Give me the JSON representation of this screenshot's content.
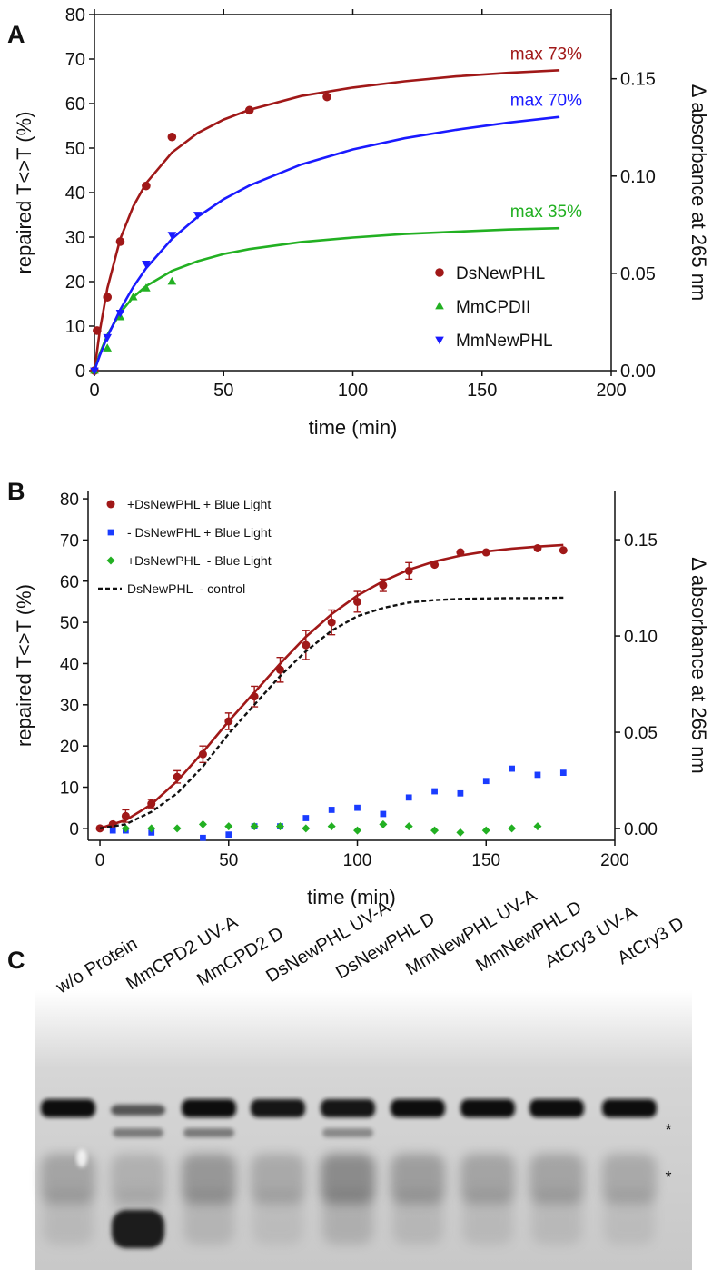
{
  "chart_data": [
    {
      "type": "scatter",
      "panel_label": "A",
      "xlabel": "time (min)",
      "ylabel": "repaired T<>T (%)",
      "y2label": "Δ absorbance at 265 nm",
      "xlim": [
        0,
        200
      ],
      "xticks": [
        0,
        50,
        100,
        150,
        200
      ],
      "ylim": [
        0,
        80
      ],
      "yticks": [
        0,
        10,
        20,
        30,
        40,
        50,
        60,
        70,
        80
      ],
      "y2lim": [
        0,
        0.183
      ],
      "y2ticks": [
        {
          "value": 0,
          "label": "0.00"
        },
        {
          "value": 0.05,
          "label": "0.05"
        },
        {
          "value": 0.1,
          "label": "0.10"
        },
        {
          "value": 0.15,
          "label": "0.15"
        }
      ],
      "legend": "lower right",
      "series": [
        {
          "name": "DsNewPHL",
          "color": "#a01818",
          "marker": "circle",
          "annotation": "max 73%",
          "x": [
            0,
            1,
            5,
            10,
            20,
            30,
            60,
            90
          ],
          "values": [
            0,
            9,
            16.5,
            29,
            41.5,
            52.5,
            58.5,
            61.5
          ],
          "fit_x": [
            0,
            2,
            5,
            10,
            15,
            20,
            30,
            40,
            50,
            60,
            80,
            100,
            120,
            140,
            160,
            180
          ],
          "fit_values": [
            0,
            8.7,
            18.5,
            29.6,
            36.9,
            42.1,
            49,
            53.4,
            56.4,
            58.6,
            61.7,
            63.6,
            65,
            66.1,
            66.9,
            67.5
          ]
        },
        {
          "name": "MmCPDII",
          "color": "#22b022",
          "marker": "triangle-up",
          "annotation": "max 35%",
          "x": [
            0,
            5,
            10,
            15,
            20,
            30
          ],
          "values": [
            0,
            5,
            12,
            16.5,
            18.5,
            20
          ],
          "fit_x": [
            0,
            2,
            5,
            10,
            15,
            20,
            30,
            40,
            50,
            60,
            80,
            100,
            120,
            140,
            160,
            180
          ],
          "fit_values": [
            0,
            3.7,
            8,
            13,
            16.5,
            19,
            22.4,
            24.6,
            26.2,
            27.3,
            28.9,
            29.9,
            30.7,
            31.2,
            31.7,
            32
          ]
        },
        {
          "name": "MmNewPHL",
          "color": "#1a1aff",
          "marker": "triangle-down",
          "annotation": "max 70%",
          "x": [
            0,
            5,
            10,
            20,
            30,
            40
          ],
          "values": [
            0,
            7.5,
            13,
            24,
            30.5,
            35
          ],
          "fit_x": [
            0,
            2,
            5,
            10,
            15,
            20,
            30,
            40,
            50,
            60,
            80,
            100,
            120,
            140,
            160,
            180
          ],
          "fit_values": [
            0,
            3.3,
            7.6,
            13.7,
            18.8,
            23,
            29.6,
            34.6,
            38.5,
            41.6,
            46.3,
            49.7,
            52.2,
            54.1,
            55.7,
            57
          ]
        }
      ]
    },
    {
      "type": "scatter",
      "panel_label": "B",
      "xlabel": "time (min)",
      "ylabel": "repaired T<>T (%)",
      "y2label": "Δ absorbance at 265 nm",
      "xlim": [
        -4.6,
        200
      ],
      "xticks": [
        0,
        50,
        100,
        150,
        200
      ],
      "ylim": [
        -2.9,
        82
      ],
      "yticks": [
        0,
        10,
        20,
        30,
        40,
        50,
        60,
        70,
        80
      ],
      "y2lim": [
        -0.0061,
        0.1755
      ],
      "y2ticks": [
        {
          "value": 0,
          "label": "0.00"
        },
        {
          "value": 0.05,
          "label": "0.05"
        },
        {
          "value": 0.1,
          "label": "0.10"
        },
        {
          "value": 0.15,
          "label": "0.15"
        }
      ],
      "legend": "upper left",
      "series": [
        {
          "name": "+DsNewPHL + Blue Light",
          "color": "#a01818",
          "marker": "circle",
          "x": [
            0,
            5,
            10,
            20,
            30,
            40,
            50,
            60,
            70,
            80,
            90,
            100,
            110,
            120,
            130,
            140,
            150,
            170,
            180
          ],
          "values": [
            0,
            1,
            3,
            6,
            12.5,
            18,
            26,
            32,
            38.5,
            44.5,
            50,
            55,
            59,
            62.5,
            64,
            67,
            67,
            68,
            67.5
          ],
          "errors": [
            null,
            null,
            1.5,
            1,
            1.5,
            2,
            2,
            2.5,
            3,
            3.5,
            3,
            2.5,
            1.5,
            2,
            null,
            null,
            null,
            null,
            null
          ],
          "fit_x": [
            0,
            10,
            20,
            30,
            40,
            50,
            60,
            70,
            80,
            90,
            100,
            110,
            120,
            130,
            140,
            150,
            160,
            170,
            180
          ],
          "fit_values": [
            0,
            2,
            5.8,
            11.5,
            18.5,
            26,
            33,
            40,
            46.5,
            52,
            56.5,
            60,
            62.8,
            64.8,
            66.2,
            67.2,
            67.9,
            68.4,
            68.8
          ]
        },
        {
          "name": "- DsNewPHL + Blue Light",
          "color": "#1a3cff",
          "marker": "square",
          "x": [
            5,
            10,
            20,
            40,
            50,
            60,
            70,
            80,
            90,
            100,
            110,
            120,
            130,
            140,
            150,
            160,
            170,
            180
          ],
          "values": [
            -0.5,
            -0.5,
            -1,
            -2.3,
            -1.5,
            0.5,
            0.5,
            2.5,
            4.5,
            5,
            3.5,
            7.5,
            9,
            8.5,
            11.5,
            14.5,
            13,
            13.5
          ]
        },
        {
          "name": "+DsNewPHL  - Blue Light",
          "color": "#22b022",
          "marker": "diamond",
          "x": [
            10,
            20,
            30,
            40,
            50,
            60,
            70,
            80,
            90,
            100,
            110,
            120,
            130,
            140,
            150,
            160,
            170
          ],
          "values": [
            0,
            0,
            0,
            1,
            0.5,
            0.5,
            0.5,
            0,
            0.5,
            -0.5,
            1,
            0.5,
            -0.5,
            -1,
            -0.5,
            0,
            0.5
          ]
        },
        {
          "name": "DsNewPHL  - control",
          "color": "#111111",
          "line_style": "dashed",
          "x": [
            0,
            10,
            20,
            30,
            40,
            50,
            60,
            70,
            80,
            90,
            100,
            110,
            120,
            130,
            140,
            150,
            160,
            170,
            180
          ],
          "values": [
            0,
            1,
            4,
            8.5,
            15,
            23,
            30,
            37,
            43,
            48,
            51.5,
            53.5,
            54.8,
            55.4,
            55.7,
            55.8,
            55.9,
            55.9,
            56
          ]
        }
      ]
    }
  ],
  "gel": {
    "panel_label": "C",
    "lanes": [
      "w/o Protein",
      "MmCPD2 UV-A",
      "MmCPD2 D",
      "DsNewPHL UV-A",
      "DsNewPHL D",
      "MmNewPHL UV-A",
      "MmNewPHL D",
      "AtCry3 UV-A",
      "AtCry3 D"
    ],
    "band_markers": [
      "*",
      "*"
    ]
  }
}
